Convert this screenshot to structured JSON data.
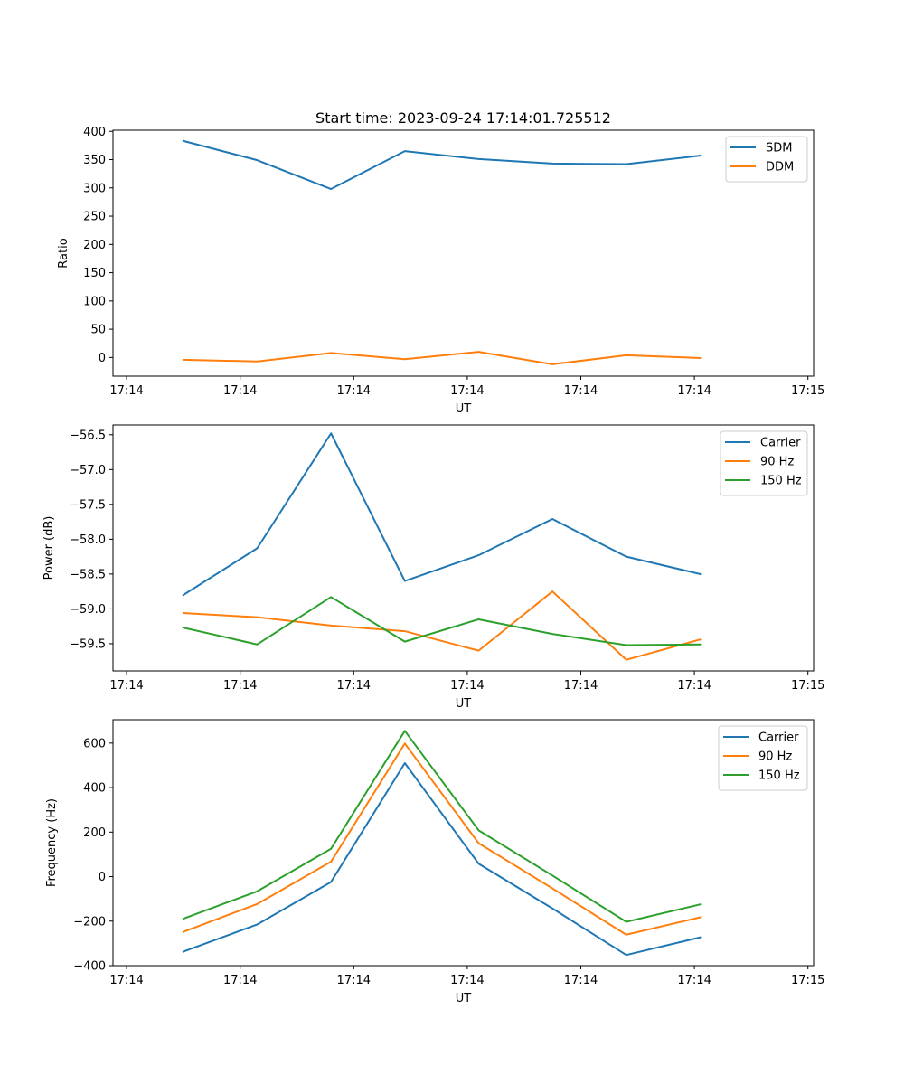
{
  "figure": {
    "title": "Start time: 2023-09-24 17:14:01.725512"
  },
  "chart_data": [
    {
      "type": "line",
      "ylabel": "Ratio",
      "xlabel": "UT",
      "x": [
        1.5,
        2.15,
        2.8,
        3.45,
        4.1,
        4.75,
        5.4,
        6.05
      ],
      "xlim": [
        0.88,
        7.05
      ],
      "xticks": [
        {
          "value": 1,
          "label": "17:14"
        },
        {
          "value": 2,
          "label": "17:14"
        },
        {
          "value": 3,
          "label": "17:14"
        },
        {
          "value": 4,
          "label": "17:14"
        },
        {
          "value": 5,
          "label": "17:14"
        },
        {
          "value": 6,
          "label": "17:14"
        },
        {
          "value": 7,
          "label": "17:15"
        }
      ],
      "ylim": [
        -33,
        402
      ],
      "yticks": [
        {
          "value": 400,
          "label": "400"
        },
        {
          "value": 350,
          "label": "350"
        },
        {
          "value": 300,
          "label": "300"
        },
        {
          "value": 250,
          "label": "250"
        },
        {
          "value": 200,
          "label": "200"
        },
        {
          "value": 150,
          "label": "150"
        },
        {
          "value": 100,
          "label": "100"
        },
        {
          "value": 50,
          "label": "50"
        },
        {
          "value": 0,
          "label": "0"
        }
      ],
      "legend_position": "top-right",
      "series": [
        {
          "name": "SDM",
          "color": "#1f77b4",
          "values": [
            383,
            349,
            298,
            365,
            351,
            343,
            342,
            357
          ]
        },
        {
          "name": "DDM",
          "color": "#ff7f0e",
          "values": [
            -4,
            -7,
            8,
            -3,
            10,
            -12,
            4,
            -1
          ]
        }
      ]
    },
    {
      "type": "line",
      "ylabel": "Power (dB)",
      "xlabel": "UT",
      "x": [
        1.5,
        2.15,
        2.8,
        3.45,
        4.1,
        4.75,
        5.4,
        6.05
      ],
      "xlim": [
        0.88,
        7.05
      ],
      "xticks": [
        {
          "value": 1,
          "label": "17:14"
        },
        {
          "value": 2,
          "label": "17:14"
        },
        {
          "value": 3,
          "label": "17:14"
        },
        {
          "value": 4,
          "label": "17:14"
        },
        {
          "value": 5,
          "label": "17:14"
        },
        {
          "value": 6,
          "label": "17:14"
        },
        {
          "value": 7,
          "label": "17:15"
        }
      ],
      "ylim": [
        -59.89,
        -56.36
      ],
      "yticks": [
        {
          "value": -56.5,
          "label": "−56.5"
        },
        {
          "value": -57.0,
          "label": "−57.0"
        },
        {
          "value": -57.5,
          "label": "−57.5"
        },
        {
          "value": -58.0,
          "label": "−58.0"
        },
        {
          "value": -58.5,
          "label": "−58.5"
        },
        {
          "value": -59.0,
          "label": "−59.0"
        },
        {
          "value": -59.5,
          "label": "−59.5"
        }
      ],
      "legend_position": "top-right",
      "series": [
        {
          "name": "Carrier",
          "color": "#1f77b4",
          "values": [
            -58.8,
            -58.13,
            -56.48,
            -58.6,
            -58.23,
            -57.71,
            -58.25,
            -58.5
          ]
        },
        {
          "name": "90 Hz",
          "color": "#ff7f0e",
          "values": [
            -59.06,
            -59.12,
            -59.24,
            -59.32,
            -59.6,
            -58.75,
            -59.73,
            -59.44
          ]
        },
        {
          "name": "150 Hz",
          "color": "#2ca02c",
          "values": [
            -59.27,
            -59.51,
            -58.83,
            -59.47,
            -59.15,
            -59.36,
            -59.52,
            -59.51
          ]
        }
      ]
    },
    {
      "type": "line",
      "ylabel": "Frequency (Hz)",
      "xlabel": "UT",
      "x": [
        1.5,
        2.15,
        2.8,
        3.45,
        4.1,
        4.75,
        5.4,
        6.05
      ],
      "xlim": [
        0.88,
        7.05
      ],
      "xticks": [
        {
          "value": 1,
          "label": "17:14"
        },
        {
          "value": 2,
          "label": "17:14"
        },
        {
          "value": 3,
          "label": "17:14"
        },
        {
          "value": 4,
          "label": "17:14"
        },
        {
          "value": 5,
          "label": "17:14"
        },
        {
          "value": 6,
          "label": "17:14"
        },
        {
          "value": 7,
          "label": "17:15"
        }
      ],
      "ylim": [
        -400,
        705
      ],
      "yticks": [
        {
          "value": 600,
          "label": "600"
        },
        {
          "value": 400,
          "label": "400"
        },
        {
          "value": 200,
          "label": "200"
        },
        {
          "value": 0,
          "label": "0"
        },
        {
          "value": -200,
          "label": "−200"
        },
        {
          "value": -400,
          "label": "−400"
        }
      ],
      "legend_position": "top-right",
      "series": [
        {
          "name": "Carrier",
          "color": "#1f77b4",
          "values": [
            -337,
            -215,
            -24,
            510,
            58,
            -143,
            -352,
            -273
          ]
        },
        {
          "name": "90 Hz",
          "color": "#ff7f0e",
          "values": [
            -248,
            -123,
            67,
            598,
            150,
            -53,
            -261,
            -183
          ]
        },
        {
          "name": "150 Hz",
          "color": "#2ca02c",
          "values": [
            -189,
            -66,
            125,
            655,
            208,
            5,
            -203,
            -125
          ]
        }
      ]
    }
  ]
}
